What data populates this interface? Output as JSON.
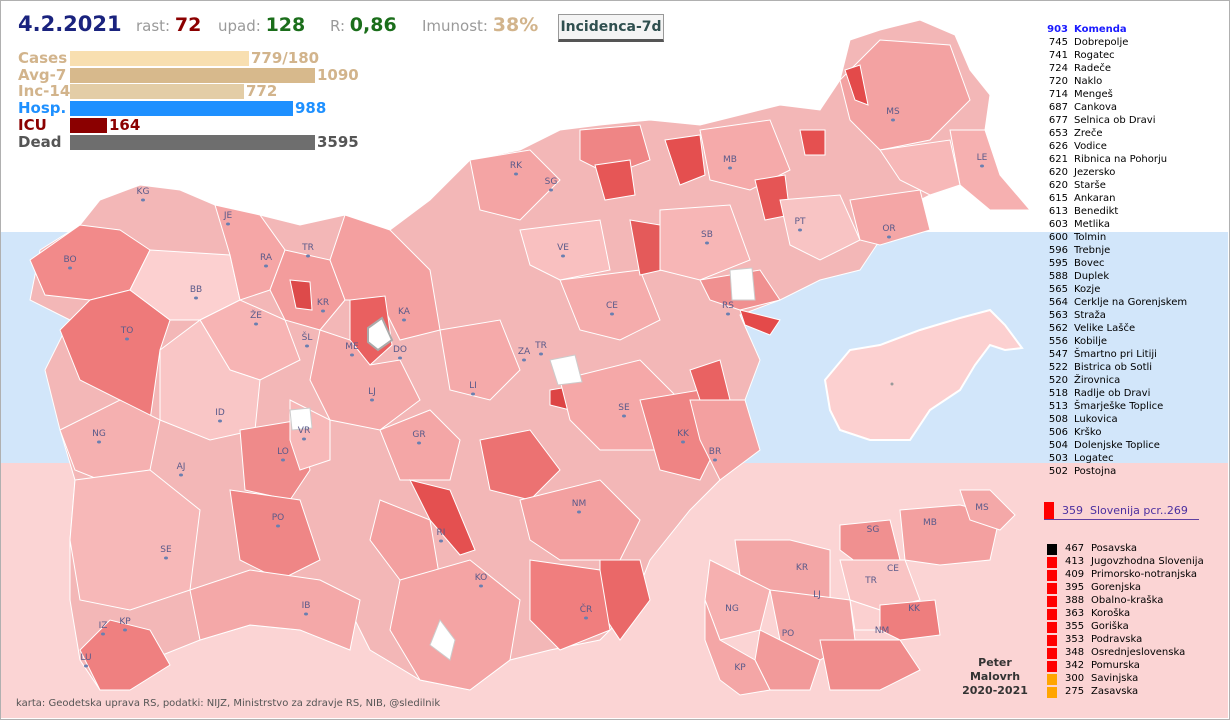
{
  "header": {
    "date": "4.2.2021",
    "rast_label": "rast:",
    "rast_value": "72",
    "upad_label": "upad:",
    "upad_value": "128",
    "r_label": "R:",
    "r_value": "0,86",
    "imunost_label": "Imunost:",
    "imunost_value": "38%",
    "view_button": "Incidenca-7d"
  },
  "stats": [
    {
      "label": "Cases",
      "value": "779/180",
      "color": "#f8dfb0",
      "fraction": 0.73
    },
    {
      "label": "Avg-7",
      "value": "1090",
      "color": "#d7b98c",
      "fraction": 1.0
    },
    {
      "label": "Inc-14",
      "value": "772",
      "color": "#e3cda6",
      "fraction": 0.71
    },
    {
      "label": "Hosp.",
      "value": "988",
      "color": "#1e90ff",
      "fraction": 0.91
    },
    {
      "label": "ICU",
      "value": "164",
      "color": "#8b0000",
      "fraction": 0.15
    },
    {
      "label": "Dead",
      "value": "3595",
      "color": "#6e6e6e",
      "fraction": 1.0
    }
  ],
  "stat_label_colors": [
    "#d2b48c",
    "#d2b48c",
    "#d2b48c",
    "#1e90ff",
    "#8b0000",
    "#555555"
  ],
  "ranking": [
    {
      "value": "903",
      "name": "Komenda"
    },
    {
      "value": "745",
      "name": "Dobrepolje"
    },
    {
      "value": "741",
      "name": "Rogatec"
    },
    {
      "value": "724",
      "name": "Radeče"
    },
    {
      "value": "720",
      "name": "Naklo"
    },
    {
      "value": "714",
      "name": "Mengeš"
    },
    {
      "value": "687",
      "name": "Cankova"
    },
    {
      "value": "677",
      "name": "Selnica ob Dravi"
    },
    {
      "value": "653",
      "name": "Zreče"
    },
    {
      "value": "626",
      "name": "Vodice"
    },
    {
      "value": "621",
      "name": "Ribnica na Pohorju"
    },
    {
      "value": "620",
      "name": "Jezersko"
    },
    {
      "value": "620",
      "name": "Starše"
    },
    {
      "value": "615",
      "name": "Ankaran"
    },
    {
      "value": "613",
      "name": "Benedikt"
    },
    {
      "value": "603",
      "name": "Metlika"
    },
    {
      "value": "600",
      "name": "Tolmin"
    },
    {
      "value": "596",
      "name": "Trebnje"
    },
    {
      "value": "595",
      "name": "Bovec"
    },
    {
      "value": "588",
      "name": "Duplek"
    },
    {
      "value": "565",
      "name": "Kozje"
    },
    {
      "value": "564",
      "name": "Cerklje na Gorenjskem"
    },
    {
      "value": "563",
      "name": "Straža"
    },
    {
      "value": "562",
      "name": "Velike Lašče"
    },
    {
      "value": "556",
      "name": "Kobilje"
    },
    {
      "value": "547",
      "name": "Šmartno pri Litiji"
    },
    {
      "value": "522",
      "name": "Bistrica ob Sotli"
    },
    {
      "value": "520",
      "name": "Žirovnica"
    },
    {
      "value": "518",
      "name": "Radlje ob Dravi"
    },
    {
      "value": "513",
      "name": "Šmarješke Toplice"
    },
    {
      "value": "508",
      "name": "Lukovica"
    },
    {
      "value": "506",
      "name": "Krško"
    },
    {
      "value": "504",
      "name": "Dolenjske Toplice"
    },
    {
      "value": "503",
      "name": "Logatec"
    },
    {
      "value": "502",
      "name": "Postojna"
    }
  ],
  "slovenia": {
    "value": "359",
    "label": "Slovenija  pcr..269"
  },
  "regions": [
    {
      "value": "467",
      "name": "Posavska",
      "color": "#000000"
    },
    {
      "value": "413",
      "name": "Jugovzhodna Slovenija",
      "color": "#ff0000"
    },
    {
      "value": "409",
      "name": "Primorsko-notranjska",
      "color": "#ff0000"
    },
    {
      "value": "395",
      "name": "Gorenjska",
      "color": "#ff0000"
    },
    {
      "value": "388",
      "name": "Obalno-kraška",
      "color": "#ff0000"
    },
    {
      "value": "363",
      "name": "Koroška",
      "color": "#ff0000"
    },
    {
      "value": "355",
      "name": "Goriška",
      "color": "#ff0000"
    },
    {
      "value": "353",
      "name": "Podravska",
      "color": "#ff0000"
    },
    {
      "value": "348",
      "name": "Osrednjeslovenska",
      "color": "#ff0000"
    },
    {
      "value": "342",
      "name": "Pomurska",
      "color": "#ff0000"
    },
    {
      "value": "300",
      "name": "Savinjska",
      "color": "#ffa500"
    },
    {
      "value": "275",
      "name": "Zasavska",
      "color": "#ffa500"
    }
  ],
  "map_labels": [
    "KG",
    "JE",
    "BO",
    "RA",
    "TR",
    "BB",
    "KR",
    "KA",
    "ŽE",
    "TO",
    "ŠL",
    "ME",
    "DO",
    "LJ",
    "ZA",
    "TR",
    "CE",
    "RS",
    "RK",
    "SG",
    "MB",
    "MS",
    "LE",
    "PT",
    "OR",
    "SB",
    "VE",
    "LI",
    "SE",
    "KK",
    "BR",
    "ID",
    "VR",
    "GR",
    "NG",
    "LO",
    "AJ",
    "PO",
    "RI",
    "NM",
    "SE",
    "KO",
    "IB",
    "ČR",
    "IZ",
    "KP",
    "LU"
  ],
  "main_map_labels": [
    {
      "t": "KG"
    },
    {
      "t": "JE"
    },
    {
      "t": "BO"
    },
    {
      "t": "RA"
    },
    {
      "t": "TR"
    },
    {
      "t": "BB"
    },
    {
      "t": "KR"
    },
    {
      "t": "KA"
    },
    {
      "t": "ŽE"
    },
    {
      "t": "TO"
    },
    {
      "t": "ŠL"
    },
    {
      "t": "ME"
    },
    {
      "t": "DO"
    },
    {
      "t": "LJ"
    },
    {
      "t": "ZA"
    },
    {
      "t": "TR"
    },
    {
      "t": "CE"
    },
    {
      "t": "RS"
    },
    {
      "t": "RK"
    },
    {
      "t": "SG"
    },
    {
      "t": "MB"
    },
    {
      "t": "MS"
    },
    {
      "t": "LE"
    },
    {
      "t": "PT"
    },
    {
      "t": "OR"
    },
    {
      "t": "SB"
    },
    {
      "t": "VE"
    },
    {
      "t": "LI"
    },
    {
      "t": "SE"
    },
    {
      "t": "KK"
    },
    {
      "t": "BR"
    },
    {
      "t": "ID"
    },
    {
      "t": "VR"
    },
    {
      "t": "GR"
    },
    {
      "t": "NG"
    },
    {
      "t": "LO"
    },
    {
      "t": "AJ"
    },
    {
      "t": "PO"
    },
    {
      "t": "RI"
    },
    {
      "t": "NM"
    },
    {
      "t": "SE"
    },
    {
      "t": "KO"
    },
    {
      "t": "IB"
    },
    {
      "t": "ČR"
    },
    {
      "t": "IZ"
    },
    {
      "t": "KP"
    },
    {
      "t": "LU"
    }
  ],
  "region_map_labels": [
    "SG",
    "MB",
    "MS",
    "KR",
    "CE",
    "TR",
    "LJ",
    "NG",
    "PO",
    "NM",
    "KK",
    "KP"
  ],
  "author": {
    "line1": "Peter",
    "line2": "Malovrh",
    "line3": "2020-2021"
  },
  "credits": "karta: Geodetska uprava RS,  podatki: NIJZ, Ministrstvo za zdravje RS, NIB, @sledilnik"
}
